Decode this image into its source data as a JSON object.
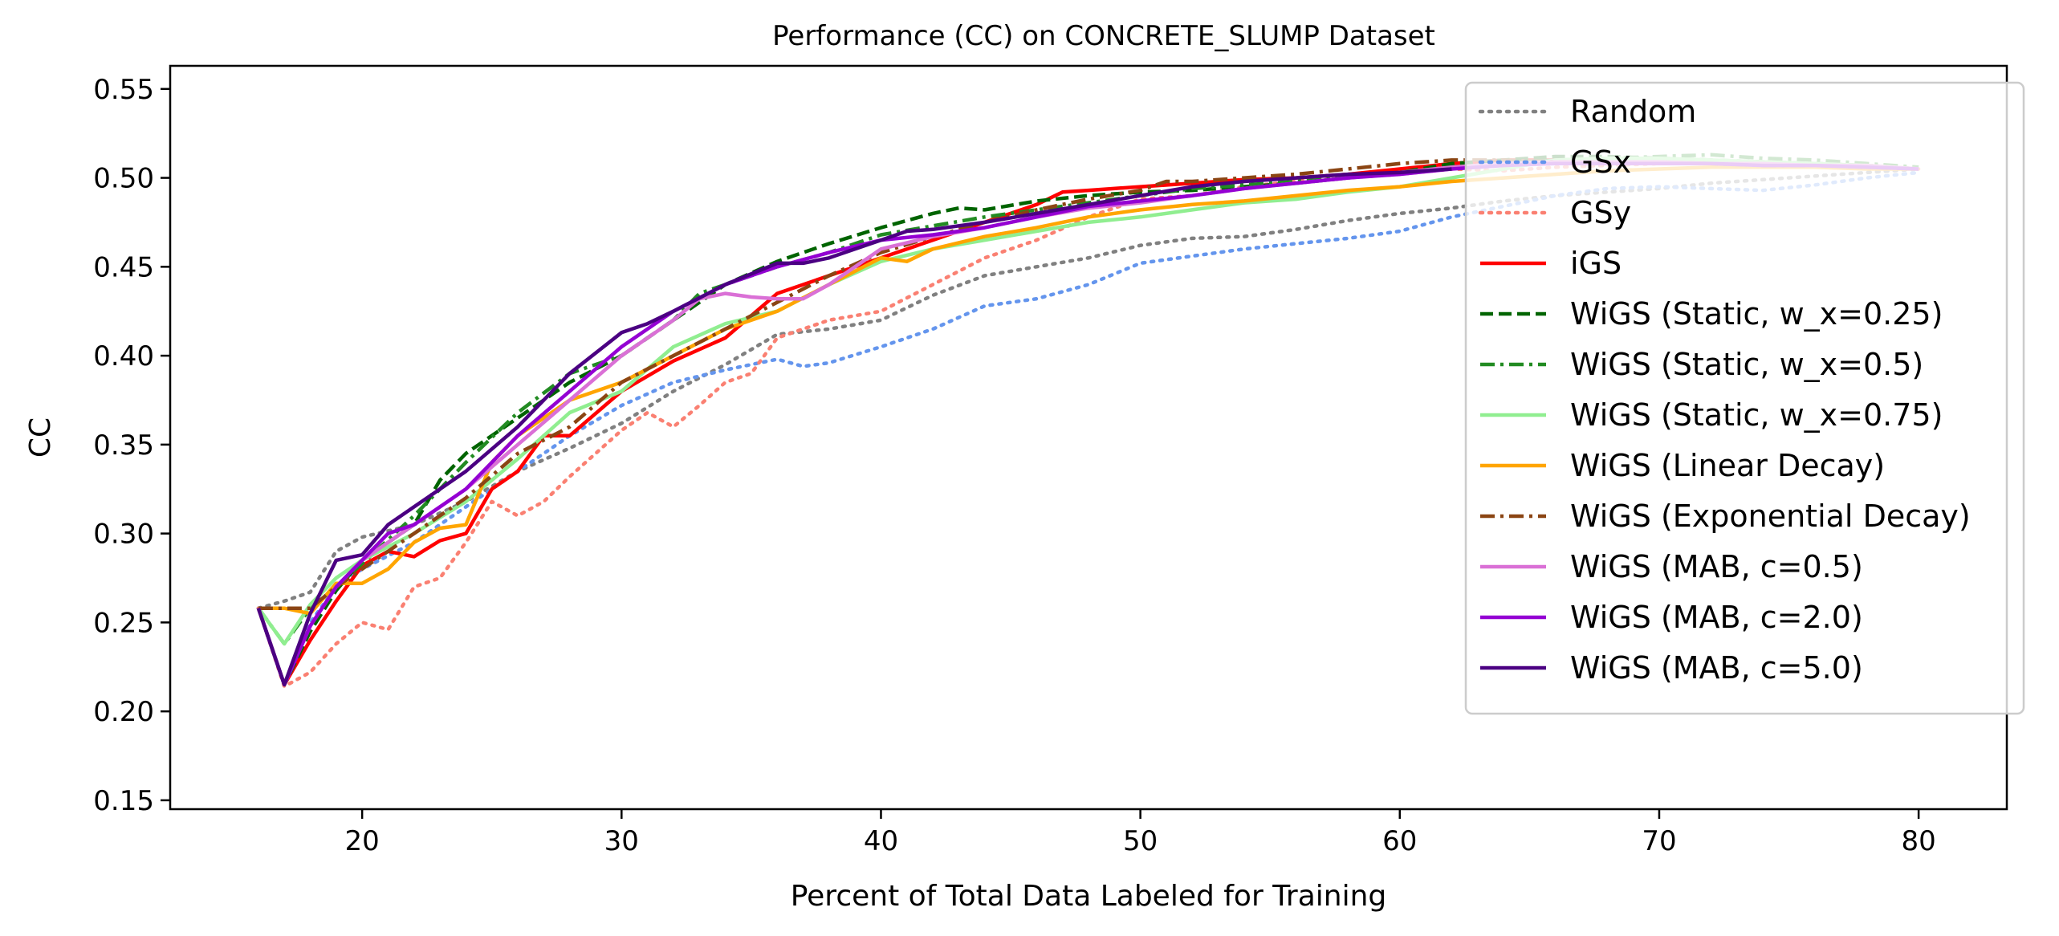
{
  "chart_data": {
    "type": "line",
    "title": "Performance (CC) on CONCRETE_SLUMP Dataset",
    "xlabel": "Percent of Total Data Labeled for Training",
    "ylabel": "CC",
    "xlim": [
      12.6,
      83.4
    ],
    "ylim": [
      0.145,
      0.563
    ],
    "xticks": [
      20,
      30,
      40,
      50,
      60,
      70,
      80
    ],
    "xtick_labels": [
      "20",
      "30",
      "40",
      "50",
      "60",
      "70",
      "80"
    ],
    "yticks": [
      0.15,
      0.2,
      0.25,
      0.3,
      0.35,
      0.4,
      0.45,
      0.5,
      0.55
    ],
    "ytick_labels": [
      "0.15",
      "0.20",
      "0.25",
      "0.30",
      "0.35",
      "0.40",
      "0.45",
      "0.50",
      "0.55"
    ],
    "grid": false,
    "legend_position": "top-right",
    "series": [
      {
        "name": "Random",
        "color": "#808080",
        "dash": "dotted",
        "x": [
          16,
          17,
          18,
          19,
          20,
          22,
          24,
          26,
          28,
          30,
          32,
          34,
          36,
          38,
          40,
          42,
          44,
          46,
          48,
          50,
          52,
          54,
          56,
          58,
          60,
          62,
          64,
          66,
          68,
          70,
          72,
          74,
          76,
          78,
          80
        ],
        "y": [
          0.258,
          0.262,
          0.267,
          0.29,
          0.298,
          0.305,
          0.318,
          0.335,
          0.348,
          0.362,
          0.38,
          0.395,
          0.412,
          0.415,
          0.42,
          0.434,
          0.445,
          0.45,
          0.455,
          0.462,
          0.466,
          0.467,
          0.471,
          0.476,
          0.48,
          0.483,
          0.487,
          0.49,
          0.492,
          0.494,
          0.497,
          0.499,
          0.501,
          0.503,
          0.505
        ]
      },
      {
        "name": "GSx",
        "color": "#6495ed",
        "dash": "dotted",
        "x": [
          16,
          17,
          18,
          19,
          20,
          22,
          24,
          26,
          28,
          30,
          32,
          34,
          36,
          37,
          38,
          40,
          42,
          44,
          46,
          48,
          50,
          52,
          54,
          56,
          58,
          60,
          62,
          64,
          66,
          68,
          70,
          72,
          74,
          76,
          78,
          80
        ],
        "y": [
          0.258,
          0.215,
          0.25,
          0.27,
          0.28,
          0.295,
          0.315,
          0.335,
          0.355,
          0.372,
          0.385,
          0.392,
          0.398,
          0.394,
          0.396,
          0.405,
          0.415,
          0.428,
          0.432,
          0.44,
          0.452,
          0.456,
          0.46,
          0.463,
          0.466,
          0.47,
          0.478,
          0.484,
          0.49,
          0.494,
          0.495,
          0.494,
          0.493,
          0.496,
          0.5,
          0.503
        ]
      },
      {
        "name": "GSy",
        "color": "#fa8072",
        "dash": "dotted",
        "x": [
          16,
          17,
          18,
          19,
          20,
          21,
          22,
          23,
          24,
          25,
          26,
          27,
          28,
          29,
          30,
          31,
          32,
          33,
          34,
          35,
          36,
          38,
          40,
          42,
          44,
          46,
          48,
          50,
          52,
          54,
          56,
          58,
          60,
          62,
          64,
          66,
          68,
          70,
          72,
          74,
          76,
          78,
          80
        ],
        "y": [
          0.258,
          0.214,
          0.222,
          0.238,
          0.25,
          0.246,
          0.27,
          0.275,
          0.295,
          0.318,
          0.31,
          0.318,
          0.332,
          0.345,
          0.358,
          0.368,
          0.36,
          0.372,
          0.385,
          0.39,
          0.41,
          0.42,
          0.425,
          0.44,
          0.455,
          0.465,
          0.478,
          0.488,
          0.49,
          0.495,
          0.498,
          0.5,
          0.502,
          0.505,
          0.504,
          0.506,
          0.507,
          0.508,
          0.508,
          0.507,
          0.507,
          0.506,
          0.505
        ]
      },
      {
        "name": "iGS",
        "color": "#ff0000",
        "dash": "solid",
        "x": [
          16,
          17,
          18,
          19,
          20,
          21,
          22,
          23,
          24,
          25,
          26,
          27,
          28,
          30,
          32,
          34,
          36,
          38,
          40,
          42,
          44,
          46,
          47,
          48,
          50,
          52,
          54,
          56,
          58,
          60,
          62,
          64,
          66,
          68,
          70,
          72,
          74,
          76,
          78,
          80
        ],
        "y": [
          0.258,
          0.215,
          0.24,
          0.262,
          0.282,
          0.29,
          0.287,
          0.296,
          0.3,
          0.325,
          0.335,
          0.355,
          0.355,
          0.38,
          0.397,
          0.41,
          0.435,
          0.445,
          0.455,
          0.465,
          0.475,
          0.485,
          0.492,
          0.493,
          0.495,
          0.497,
          0.499,
          0.5,
          0.502,
          0.505,
          0.508,
          0.51,
          0.51,
          0.509,
          0.509,
          0.508,
          0.508,
          0.507,
          0.507,
          0.505
        ]
      },
      {
        "name": "WiGS (Static, w_x=0.25)",
        "color": "#006400",
        "dash": "dashed",
        "x": [
          16,
          17,
          18,
          19,
          20,
          22,
          23,
          24,
          26,
          28,
          30,
          32,
          34,
          36,
          38,
          40,
          42,
          43,
          44,
          46,
          48,
          50,
          52,
          54,
          56,
          58,
          60,
          62,
          64,
          66,
          68,
          70,
          72,
          74,
          76,
          78,
          80
        ],
        "y": [
          0.258,
          0.215,
          0.245,
          0.268,
          0.285,
          0.305,
          0.33,
          0.345,
          0.365,
          0.385,
          0.4,
          0.42,
          0.44,
          0.453,
          0.463,
          0.472,
          0.48,
          0.483,
          0.482,
          0.487,
          0.49,
          0.492,
          0.493,
          0.495,
          0.497,
          0.5,
          0.503,
          0.508,
          0.51,
          0.512,
          0.512,
          0.511,
          0.51,
          0.509,
          0.508,
          0.507,
          0.505
        ]
      },
      {
        "name": "WiGS (Static, w_x=0.5)",
        "color": "#228b22",
        "dash": "dashdot",
        "x": [
          16,
          17,
          18,
          19,
          20,
          22,
          24,
          26,
          28,
          30,
          32,
          33,
          34,
          36,
          38,
          40,
          42,
          44,
          46,
          48,
          50,
          52,
          54,
          56,
          58,
          60,
          62,
          64,
          66,
          68,
          70,
          72,
          74,
          76,
          78,
          80
        ],
        "y": [
          0.258,
          0.238,
          0.258,
          0.27,
          0.283,
          0.31,
          0.34,
          0.368,
          0.39,
          0.4,
          0.42,
          0.435,
          0.44,
          0.45,
          0.458,
          0.468,
          0.473,
          0.478,
          0.482,
          0.486,
          0.49,
          0.494,
          0.496,
          0.498,
          0.5,
          0.503,
          0.506,
          0.508,
          0.51,
          0.511,
          0.512,
          0.513,
          0.511,
          0.51,
          0.508,
          0.506
        ]
      },
      {
        "name": "WiGS (Static, w_x=0.75)",
        "color": "#90ee90",
        "dash": "solid",
        "x": [
          16,
          17,
          18,
          19,
          20,
          22,
          24,
          26,
          28,
          30,
          32,
          34,
          36,
          38,
          40,
          42,
          44,
          46,
          48,
          50,
          52,
          54,
          56,
          58,
          60,
          62,
          64,
          66,
          68,
          70,
          72,
          74,
          76,
          78,
          80
        ],
        "y": [
          0.258,
          0.238,
          0.26,
          0.275,
          0.285,
          0.3,
          0.318,
          0.342,
          0.368,
          0.38,
          0.405,
          0.418,
          0.425,
          0.44,
          0.453,
          0.46,
          0.465,
          0.47,
          0.475,
          0.478,
          0.482,
          0.486,
          0.488,
          0.492,
          0.495,
          0.5,
          0.505,
          0.51,
          0.511,
          0.511,
          0.51,
          0.509,
          0.508,
          0.507,
          0.505
        ]
      },
      {
        "name": "WiGS (Linear Decay)",
        "color": "#ffa500",
        "dash": "solid",
        "x": [
          16,
          17,
          18,
          19,
          20,
          21,
          22,
          23,
          24,
          25,
          26,
          28,
          30,
          32,
          34,
          36,
          38,
          40,
          41,
          42,
          44,
          46,
          48,
          50,
          52,
          54,
          56,
          58,
          60,
          62,
          64,
          66,
          68,
          70,
          72,
          74,
          76,
          78,
          80
        ],
        "y": [
          0.258,
          0.258,
          0.255,
          0.272,
          0.272,
          0.28,
          0.295,
          0.303,
          0.305,
          0.34,
          0.355,
          0.375,
          0.385,
          0.4,
          0.415,
          0.425,
          0.44,
          0.455,
          0.453,
          0.46,
          0.467,
          0.472,
          0.478,
          0.482,
          0.485,
          0.487,
          0.49,
          0.493,
          0.495,
          0.498,
          0.5,
          0.502,
          0.504,
          0.505,
          0.506,
          0.506,
          0.506,
          0.505,
          0.505
        ]
      },
      {
        "name": "WiGS (Exponential Decay)",
        "color": "#8b4513",
        "dash": "dashdot",
        "x": [
          16,
          17,
          18,
          19,
          20,
          22,
          24,
          26,
          28,
          30,
          32,
          34,
          36,
          38,
          40,
          42,
          44,
          46,
          48,
          50,
          51,
          52,
          54,
          56,
          58,
          60,
          62,
          64,
          66,
          68,
          70,
          72,
          74,
          76,
          78,
          80
        ],
        "y": [
          0.258,
          0.258,
          0.258,
          0.27,
          0.28,
          0.3,
          0.32,
          0.345,
          0.36,
          0.385,
          0.4,
          0.415,
          0.43,
          0.445,
          0.458,
          0.467,
          0.475,
          0.482,
          0.488,
          0.493,
          0.498,
          0.498,
          0.5,
          0.502,
          0.505,
          0.508,
          0.51,
          0.51,
          0.509,
          0.509,
          0.508,
          0.508,
          0.507,
          0.507,
          0.506,
          0.505
        ]
      },
      {
        "name": "WiGS (MAB, c=0.5)",
        "color": "#da70d6",
        "dash": "solid",
        "x": [
          16,
          17,
          18,
          19,
          20,
          22,
          24,
          26,
          28,
          30,
          32,
          33,
          34,
          35,
          36,
          37,
          38,
          40,
          42,
          44,
          46,
          48,
          50,
          52,
          54,
          56,
          58,
          60,
          62,
          64,
          66,
          68,
          70,
          72,
          74,
          76,
          78,
          80
        ],
        "y": [
          0.258,
          0.215,
          0.248,
          0.27,
          0.285,
          0.305,
          0.325,
          0.35,
          0.375,
          0.4,
          0.42,
          0.432,
          0.435,
          0.433,
          0.432,
          0.432,
          0.44,
          0.46,
          0.467,
          0.472,
          0.478,
          0.483,
          0.486,
          0.49,
          0.494,
          0.497,
          0.5,
          0.503,
          0.506,
          0.508,
          0.509,
          0.509,
          0.509,
          0.508,
          0.508,
          0.507,
          0.507,
          0.505
        ]
      },
      {
        "name": "WiGS (MAB, c=2.0)",
        "color": "#9400d3",
        "dash": "solid",
        "x": [
          16,
          17,
          18,
          19,
          20,
          21,
          22,
          24,
          26,
          28,
          30,
          32,
          34,
          36,
          38,
          40,
          42,
          44,
          46,
          48,
          50,
          52,
          54,
          56,
          58,
          60,
          62,
          64,
          66,
          68,
          70,
          72,
          74,
          76,
          78,
          80
        ],
        "y": [
          0.258,
          0.215,
          0.248,
          0.27,
          0.285,
          0.3,
          0.305,
          0.325,
          0.355,
          0.38,
          0.405,
          0.425,
          0.44,
          0.45,
          0.458,
          0.465,
          0.468,
          0.472,
          0.478,
          0.484,
          0.487,
          0.49,
          0.494,
          0.497,
          0.5,
          0.502,
          0.505,
          0.507,
          0.508,
          0.508,
          0.508,
          0.508,
          0.507,
          0.507,
          0.506,
          0.505
        ]
      },
      {
        "name": "WiGS (MAB, c=5.0)",
        "color": "#4b0082",
        "dash": "solid",
        "x": [
          16,
          17,
          18,
          19,
          20,
          21,
          22,
          24,
          26,
          28,
          30,
          31,
          32,
          34,
          36,
          37,
          38,
          40,
          41,
          42,
          44,
          46,
          48,
          50,
          52,
          54,
          56,
          58,
          60,
          62
        ],
        "y": [
          0.258,
          0.215,
          0.255,
          0.285,
          0.288,
          0.305,
          0.315,
          0.335,
          0.36,
          0.39,
          0.413,
          0.418,
          0.425,
          0.44,
          0.452,
          0.452,
          0.455,
          0.465,
          0.47,
          0.471,
          0.475,
          0.48,
          0.485,
          0.49,
          0.495,
          0.498,
          0.5,
          0.502,
          0.503,
          0.505
        ]
      }
    ]
  }
}
